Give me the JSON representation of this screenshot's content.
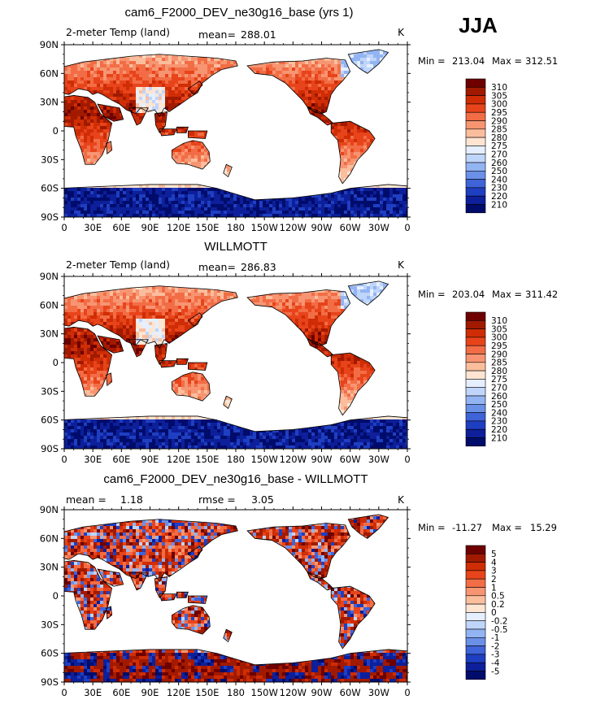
{
  "season": "JJA",
  "units": "K",
  "field_label": "2-meter Temp (land)",
  "x_ticks": [
    "0",
    "30E",
    "60E",
    "90E",
    "120E",
    "150E",
    "180",
    "150W",
    "120W",
    "90W",
    "60W",
    "30W",
    "0"
  ],
  "y_ticks": [
    "90N",
    "60N",
    "30N",
    "0",
    "30S",
    "60S",
    "90S"
  ],
  "colors": {
    "ocean": "#ffffff",
    "coast": "#000000"
  },
  "chart_data": [
    {
      "type": "heatmap",
      "title": "cam6_F2000_DEV_ne30g16_base (yrs 1)",
      "stat_label": "mean=",
      "stat_value": "288.01",
      "min_label": "Min =",
      "min_value": "213.04",
      "max_label": "Max =",
      "max_value": "312.51",
      "xlim": [
        0,
        360
      ],
      "ylim": [
        -90,
        90
      ],
      "colorbar": {
        "labels": [
          "310",
          "305",
          "300",
          "295",
          "290",
          "285",
          "280",
          "275",
          "270",
          "260",
          "250",
          "240",
          "230",
          "220",
          "210"
        ],
        "colors": [
          "#6e0000",
          "#a11a00",
          "#cf2d05",
          "#e8441b",
          "#f26d45",
          "#f79572",
          "#fbbe9d",
          "#fde5d2",
          "#e6efff",
          "#bfd5fa",
          "#93b4f2",
          "#6b90e8",
          "#3f63d8",
          "#1f3fc2",
          "#0d1f9a",
          "#000c6b"
        ]
      }
    },
    {
      "type": "heatmap",
      "title": "WILLMOTT",
      "stat_label": "mean=",
      "stat_value": "286.83",
      "min_label": "Min =",
      "min_value": "203.04",
      "max_label": "Max =",
      "max_value": "311.42",
      "xlim": [
        0,
        360
      ],
      "ylim": [
        -90,
        90
      ],
      "colorbar": {
        "labels": [
          "310",
          "305",
          "300",
          "295",
          "290",
          "285",
          "280",
          "275",
          "270",
          "260",
          "250",
          "240",
          "230",
          "220",
          "210"
        ],
        "colors": [
          "#6e0000",
          "#a11a00",
          "#cf2d05",
          "#e8441b",
          "#f26d45",
          "#f79572",
          "#fbbe9d",
          "#fde5d2",
          "#e6efff",
          "#bfd5fa",
          "#93b4f2",
          "#6b90e8",
          "#3f63d8",
          "#1f3fc2",
          "#0d1f9a",
          "#000c6b"
        ]
      }
    },
    {
      "type": "heatmap",
      "title": "cam6_F2000_DEV_ne30g16_base - WILLMOTT",
      "stat_label": "mean =",
      "stat_value": "1.18",
      "rmse_label": "rmse =",
      "rmse_value": "3.05",
      "min_label": "Min =",
      "min_value": "-11.27",
      "max_label": "Max =",
      "max_value": "15.29",
      "xlim": [
        0,
        360
      ],
      "ylim": [
        -90,
        90
      ],
      "colorbar": {
        "labels": [
          "5",
          "4",
          "3",
          "2",
          "1",
          "0.5",
          "0.2",
          "0",
          "-0.2",
          "-0.5",
          "-1",
          "-2",
          "-3",
          "-4",
          "-5"
        ],
        "colors": [
          "#6e0000",
          "#a11a00",
          "#cf2d05",
          "#e8441b",
          "#f26d45",
          "#f79572",
          "#fbbe9d",
          "#fde5d2",
          "#e6efff",
          "#bfd5fa",
          "#93b4f2",
          "#6b90e8",
          "#3f63d8",
          "#1f3fc2",
          "#0d1f9a",
          "#000c6b"
        ]
      }
    }
  ]
}
